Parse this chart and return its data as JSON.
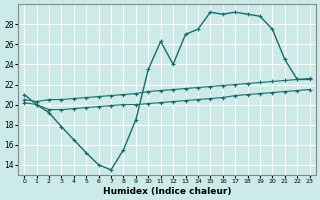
{
  "xlabel": "Humidex (Indice chaleur)",
  "background_color": "#cceae8",
  "grid_color": "#ffffff",
  "line_color": "#1a6b6b",
  "xlim": [
    -0.5,
    23.5
  ],
  "ylim": [
    13.0,
    30.0
  ],
  "yticks": [
    14,
    16,
    18,
    20,
    22,
    24,
    26,
    28
  ],
  "xticks": [
    0,
    1,
    2,
    3,
    4,
    5,
    6,
    7,
    8,
    9,
    10,
    11,
    12,
    13,
    14,
    15,
    16,
    17,
    18,
    19,
    20,
    21,
    22,
    23
  ],
  "series1_x": [
    0,
    1,
    2,
    3,
    4,
    5,
    6,
    7,
    8,
    9,
    10,
    11,
    12,
    13,
    14,
    15,
    16,
    17,
    18,
    19,
    20,
    21,
    22,
    23
  ],
  "series1_y": [
    21.0,
    20.0,
    19.2,
    17.8,
    16.5,
    15.2,
    14.0,
    13.5,
    15.5,
    18.5,
    23.5,
    26.3,
    24.0,
    27.0,
    27.5,
    29.2,
    29.0,
    29.2,
    29.0,
    28.8,
    27.5,
    24.5,
    22.5,
    22.5
  ],
  "series2_x": [
    0,
    1,
    2,
    3,
    4,
    5,
    6,
    7,
    8,
    9,
    10,
    11,
    12,
    13,
    14,
    15,
    16,
    17,
    18,
    19,
    20,
    21,
    22,
    23
  ],
  "series2_y": [
    20.5,
    20.3,
    20.5,
    20.5,
    20.6,
    20.7,
    20.8,
    20.9,
    21.0,
    21.1,
    21.3,
    21.4,
    21.5,
    21.6,
    21.7,
    21.8,
    21.9,
    22.0,
    22.1,
    22.2,
    22.3,
    22.4,
    22.5,
    22.6
  ],
  "series3_x": [
    0,
    1,
    2,
    3,
    4,
    5,
    6,
    7,
    8,
    9,
    10,
    11,
    12,
    13,
    14,
    15,
    16,
    17,
    18,
    19,
    20,
    21,
    22,
    23
  ],
  "series3_y": [
    20.2,
    20.0,
    19.5,
    19.5,
    19.6,
    19.7,
    19.8,
    19.9,
    20.0,
    20.0,
    20.1,
    20.2,
    20.3,
    20.4,
    20.5,
    20.6,
    20.7,
    20.9,
    21.0,
    21.1,
    21.2,
    21.3,
    21.4,
    21.5
  ]
}
